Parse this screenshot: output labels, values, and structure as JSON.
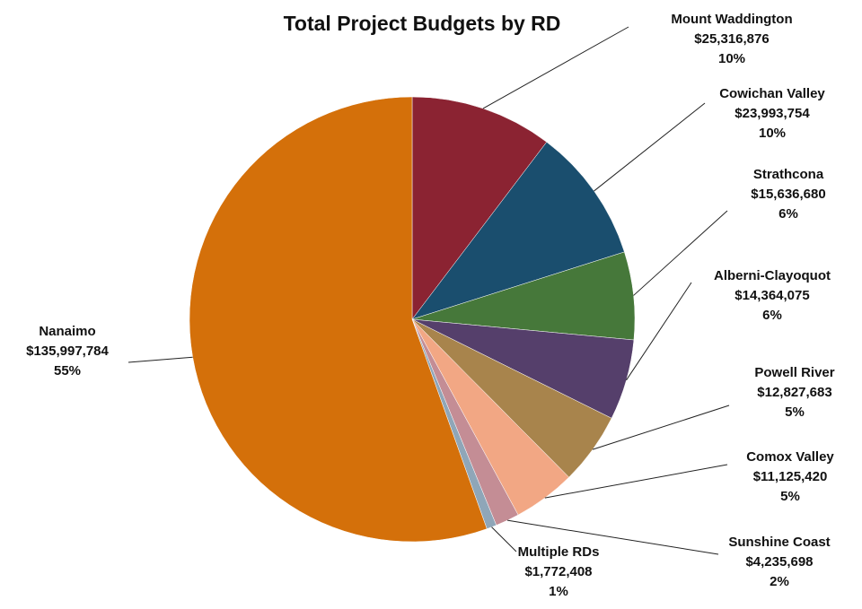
{
  "chart_data": {
    "type": "pie",
    "title": "Total Project Budgets by RD",
    "categories": [
      "Mount Waddington",
      "Cowichan Valley",
      "Strathcona",
      "Alberni-Clayoquot",
      "Powell River",
      "Comox Valley",
      "Sunshine Coast",
      "Multiple RDs",
      "Nanaimo"
    ],
    "values": [
      25316876,
      23993754,
      15636680,
      14364075,
      12827683,
      11125420,
      4235698,
      1772408,
      135997784
    ],
    "value_labels": [
      "$25,316,876",
      "$23,993,754",
      "$15,636,680",
      "$14,364,075",
      "$12,827,683",
      "$11,125,420",
      "$4,235,698",
      "$1,772,408",
      "$135,997,784"
    ],
    "percent_labels": [
      "10%",
      "10%",
      "6%",
      "6%",
      "5%",
      "5%",
      "2%",
      "1%",
      "55%"
    ],
    "colors": [
      "#8b2332",
      "#1a4e6e",
      "#46783a",
      "#553f6b",
      "#a8844c",
      "#f2a784",
      "#c48d95",
      "#8fa6b8",
      "#d4700a"
    ]
  }
}
